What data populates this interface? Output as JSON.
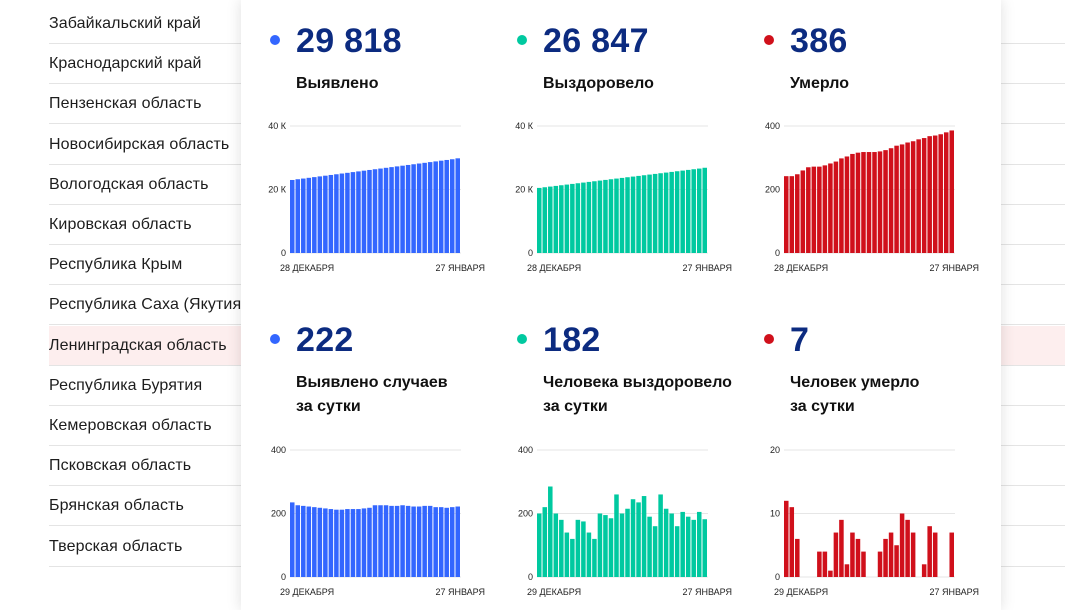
{
  "colors": {
    "blue": "#3366ff",
    "teal": "#00c9a0",
    "red": "#d0101b",
    "value_text": "#0c2b80"
  },
  "regions": [
    {
      "name": "Забайкальский край",
      "highlighted": false
    },
    {
      "name": "Краснодарский край",
      "highlighted": false
    },
    {
      "name": "Пензенская область",
      "highlighted": false
    },
    {
      "name": "Новосибирская область",
      "highlighted": false
    },
    {
      "name": "Вологодская область",
      "highlighted": false
    },
    {
      "name": "Кировская область",
      "highlighted": false
    },
    {
      "name": "Республика Крым",
      "highlighted": false
    },
    {
      "name": "Республика Саха (Якутия)",
      "highlighted": false
    },
    {
      "name": "Ленинградская область",
      "highlighted": true
    },
    {
      "name": "Республика Бурятия",
      "highlighted": false
    },
    {
      "name": "Кемеровская область",
      "highlighted": false
    },
    {
      "name": "Псковская область",
      "highlighted": false
    },
    {
      "name": "Брянская область",
      "highlighted": false
    },
    {
      "name": "Тверская область",
      "highlighted": false
    }
  ],
  "stats": [
    {
      "value": "29 818",
      "label": [
        "Выявлено"
      ],
      "color": "#3366ff"
    },
    {
      "value": "26 847",
      "label": [
        "Выздоровело"
      ],
      "color": "#00c9a0"
    },
    {
      "value": "386",
      "label": [
        "Умерло"
      ],
      "color": "#d0101b"
    },
    {
      "value": "222",
      "label": [
        "Выявлено случаев",
        "за сутки"
      ],
      "color": "#3366ff"
    },
    {
      "value": "182",
      "label": [
        "Человека выздоровело",
        "за сутки"
      ],
      "color": "#00c9a0"
    },
    {
      "value": "7",
      "label": [
        "Человек умерло",
        "за сутки"
      ],
      "color": "#d0101b"
    }
  ],
  "chart_data": [
    {
      "type": "bar",
      "color": "#3366ff",
      "x_start_label": "28 ДЕКАБРЯ",
      "x_end_label": "27 ЯНВАРЯ",
      "ylim": [
        0,
        40000
      ],
      "yticks": [
        0,
        20000,
        40000
      ],
      "ytick_labels": [
        "0",
        "20 К",
        "40 К"
      ],
      "values": [
        23000,
        23230,
        23450,
        23680,
        23900,
        24130,
        24350,
        24580,
        24800,
        25030,
        25250,
        25480,
        25700,
        25930,
        26150,
        26380,
        26600,
        26830,
        27050,
        27280,
        27500,
        27730,
        27950,
        28180,
        28400,
        28630,
        28850,
        29080,
        29300,
        29530,
        29818
      ]
    },
    {
      "type": "bar",
      "color": "#00c9a0",
      "x_start_label": "28 ДЕКАБРЯ",
      "x_end_label": "27 ЯНВАРЯ",
      "ylim": [
        0,
        40000
      ],
      "yticks": [
        0,
        20000,
        40000
      ],
      "ytick_labels": [
        "0",
        "20 К",
        "40 К"
      ],
      "values": [
        20500,
        20710,
        20920,
        21130,
        21340,
        21550,
        21760,
        21970,
        22180,
        22390,
        22600,
        22810,
        23020,
        23230,
        23440,
        23650,
        23860,
        24070,
        24280,
        24490,
        24700,
        24910,
        25120,
        25330,
        25540,
        25750,
        25960,
        26170,
        26380,
        26590,
        26847
      ]
    },
    {
      "type": "bar",
      "color": "#d0101b",
      "x_start_label": "28 ДЕКАБРЯ",
      "x_end_label": "27 ЯНВАРЯ",
      "ylim": [
        0,
        400
      ],
      "yticks": [
        0,
        200,
        400
      ],
      "ytick_labels": [
        "0",
        "200",
        "400"
      ],
      "values": [
        242,
        242,
        248,
        260,
        270,
        272,
        272,
        276,
        282,
        288,
        298,
        304,
        312,
        316,
        318,
        318,
        318,
        320,
        324,
        330,
        338,
        342,
        348,
        352,
        358,
        362,
        368,
        370,
        374,
        380,
        386
      ]
    },
    {
      "type": "bar",
      "color": "#3366ff",
      "x_start_label": "29 ДЕКАБРЯ",
      "x_end_label": "27 ЯНВАРЯ",
      "ylim": [
        0,
        400
      ],
      "yticks": [
        0,
        200,
        400
      ],
      "ytick_labels": [
        "0",
        "200",
        "400"
      ],
      "values": [
        235,
        226,
        224,
        222,
        220,
        218,
        216,
        214,
        212,
        212,
        214,
        214,
        214,
        216,
        218,
        226,
        226,
        226,
        224,
        224,
        226,
        224,
        222,
        222,
        224,
        224,
        220,
        220,
        218,
        220,
        222
      ]
    },
    {
      "type": "bar",
      "color": "#00c9a0",
      "x_start_label": "29 ДЕКАБРЯ",
      "x_end_label": "27 ЯНВАРЯ",
      "ylim": [
        0,
        400
      ],
      "yticks": [
        0,
        200,
        400
      ],
      "ytick_labels": [
        "0",
        "200",
        "400"
      ],
      "values": [
        200,
        220,
        285,
        200,
        180,
        140,
        120,
        180,
        175,
        140,
        120,
        200,
        195,
        185,
        260,
        200,
        215,
        245,
        235,
        255,
        190,
        160,
        260,
        215,
        200,
        160,
        205,
        190,
        180,
        205,
        182
      ]
    },
    {
      "type": "bar",
      "color": "#d0101b",
      "x_start_label": "29 ДЕКАБРЯ",
      "x_end_label": "27 ЯНВАРЯ",
      "ylim": [
        0,
        20
      ],
      "yticks": [
        0,
        10,
        20
      ],
      "ytick_labels": [
        "0",
        "10",
        "20"
      ],
      "values": [
        12,
        11,
        6,
        0,
        0,
        0,
        4,
        4,
        1,
        7,
        9,
        2,
        7,
        6,
        4,
        0,
        0,
        4,
        6,
        7,
        5,
        10,
        9,
        7,
        0,
        2,
        8,
        7,
        0,
        0,
        7
      ]
    }
  ]
}
